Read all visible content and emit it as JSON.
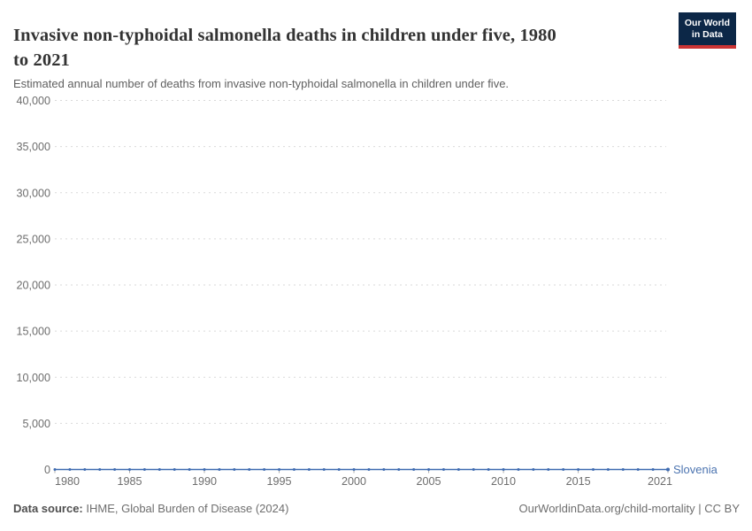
{
  "header": {
    "title_lines": [
      "Invasive non-typhoidal salmonella deaths in children under five, 1980",
      "to 2021"
    ],
    "subtitle": "Estimated annual number of deaths from invasive non-typhoidal salmonella in children under five.",
    "logo": {
      "line1": "Our World",
      "line2": "in Data",
      "bg_color": "#0c2747",
      "accent_color": "#cb3434"
    }
  },
  "chart_data": {
    "type": "line",
    "title": "Invasive non-typhoidal salmonella deaths in children under five, 1980 to 2021",
    "xlabel": "",
    "ylabel": "",
    "xlim": [
      1980,
      2021
    ],
    "ylim": [
      0,
      40000
    ],
    "grid": "horizontal-dashed",
    "legend_position": "end-of-line-label",
    "x": [
      1980,
      1981,
      1982,
      1983,
      1984,
      1985,
      1986,
      1987,
      1988,
      1989,
      1990,
      1991,
      1992,
      1993,
      1994,
      1995,
      1996,
      1997,
      1998,
      1999,
      2000,
      2001,
      2002,
      2003,
      2004,
      2005,
      2006,
      2007,
      2008,
      2009,
      2010,
      2011,
      2012,
      2013,
      2014,
      2015,
      2016,
      2017,
      2018,
      2019,
      2020,
      2021
    ],
    "series": [
      {
        "name": "Slovenia",
        "color": "#3d6ab0",
        "label_color": "#4c74b0",
        "values": [
          0,
          0,
          0,
          0,
          0,
          0,
          0,
          0,
          0,
          0,
          0,
          0,
          0,
          0,
          0,
          0,
          0,
          0,
          0,
          0,
          0,
          0,
          0,
          0,
          0,
          0,
          0,
          0,
          0,
          0,
          0,
          0,
          0,
          0,
          0,
          0,
          0,
          0,
          0,
          0,
          0,
          0
        ]
      }
    ],
    "x_ticks": [
      {
        "value": 1980,
        "label": "1980"
      },
      {
        "value": 1985,
        "label": "1985"
      },
      {
        "value": 1990,
        "label": "1990"
      },
      {
        "value": 1995,
        "label": "1995"
      },
      {
        "value": 2000,
        "label": "2000"
      },
      {
        "value": 2005,
        "label": "2005"
      },
      {
        "value": 2010,
        "label": "2010"
      },
      {
        "value": 2015,
        "label": "2015"
      },
      {
        "value": 2021,
        "label": "2021"
      }
    ],
    "y_ticks": [
      {
        "value": 0,
        "label": "0"
      },
      {
        "value": 5000,
        "label": "5,000"
      },
      {
        "value": 10000,
        "label": "10,000"
      },
      {
        "value": 15000,
        "label": "15,000"
      },
      {
        "value": 20000,
        "label": "20,000"
      },
      {
        "value": 25000,
        "label": "25,000"
      },
      {
        "value": 30000,
        "label": "30,000"
      },
      {
        "value": 35000,
        "label": "35,000"
      },
      {
        "value": 40000,
        "label": "40,000"
      }
    ],
    "colors": {
      "gridline": "#d9d9d9",
      "tick_label": "#6d6d6d",
      "axis_tick": "#a8a8a8"
    }
  },
  "footer": {
    "source_label": "Data source:",
    "source_text": " IHME, Global Burden of Disease (2024)",
    "credit": "OurWorldinData.org/child-mortality | CC BY"
  }
}
